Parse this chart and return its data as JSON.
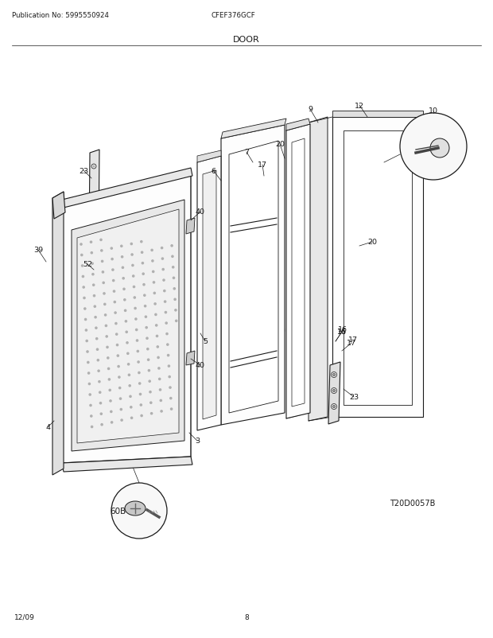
{
  "title": "DOOR",
  "pub_no": "Publication No: 5995550924",
  "model": "CFEF376GCF",
  "date": "12/09",
  "page": "8",
  "diagram_code": "T20D0057B",
  "bg_color": "#ffffff",
  "line_color": "#1a1a1a",
  "fill_color": "#f8f8f8",
  "fill_light": "#fdfdfd"
}
